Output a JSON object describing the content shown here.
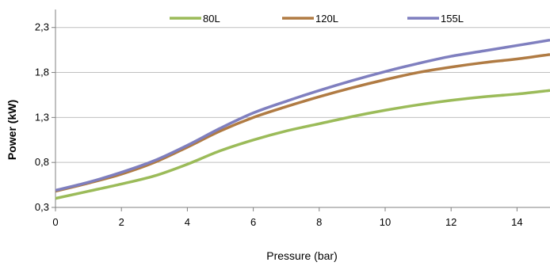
{
  "chart_data": {
    "type": "line",
    "xlabel": "Pressure (bar)",
    "ylabel": "Power (kW)",
    "xlim": [
      0,
      15
    ],
    "ylim": [
      0.3,
      2.5
    ],
    "x_ticks": [
      "0",
      "2",
      "4",
      "6",
      "8",
      "10",
      "12",
      "14"
    ],
    "y_ticks": [
      "0,3",
      "0,8",
      "1,3",
      "1,8",
      "2,3"
    ],
    "grid": "horizontal",
    "legend_position": "top",
    "series": [
      {
        "name": "80L",
        "color": "#9bbb59",
        "x": [
          0,
          1,
          2,
          3,
          4,
          5,
          6,
          7,
          8,
          9,
          10,
          11,
          12,
          13,
          14,
          15
        ],
        "y": [
          0.4,
          0.48,
          0.56,
          0.65,
          0.78,
          0.93,
          1.05,
          1.15,
          1.23,
          1.31,
          1.38,
          1.44,
          1.49,
          1.53,
          1.56,
          1.6
        ]
      },
      {
        "name": "120L",
        "color": "#b07b43",
        "x": [
          0,
          1,
          2,
          3,
          4,
          5,
          6,
          7,
          8,
          9,
          10,
          11,
          12,
          13,
          14,
          15
        ],
        "y": [
          0.48,
          0.57,
          0.67,
          0.8,
          0.97,
          1.15,
          1.3,
          1.42,
          1.53,
          1.63,
          1.72,
          1.8,
          1.86,
          1.91,
          1.95,
          2.0
        ]
      },
      {
        "name": "155L",
        "color": "#7f7fbf",
        "x": [
          0,
          1,
          2,
          3,
          4,
          5,
          6,
          7,
          8,
          9,
          10,
          11,
          12,
          13,
          14,
          15
        ],
        "y": [
          0.49,
          0.58,
          0.69,
          0.82,
          0.99,
          1.18,
          1.35,
          1.48,
          1.6,
          1.71,
          1.81,
          1.9,
          1.98,
          2.04,
          2.1,
          2.16
        ]
      }
    ]
  }
}
